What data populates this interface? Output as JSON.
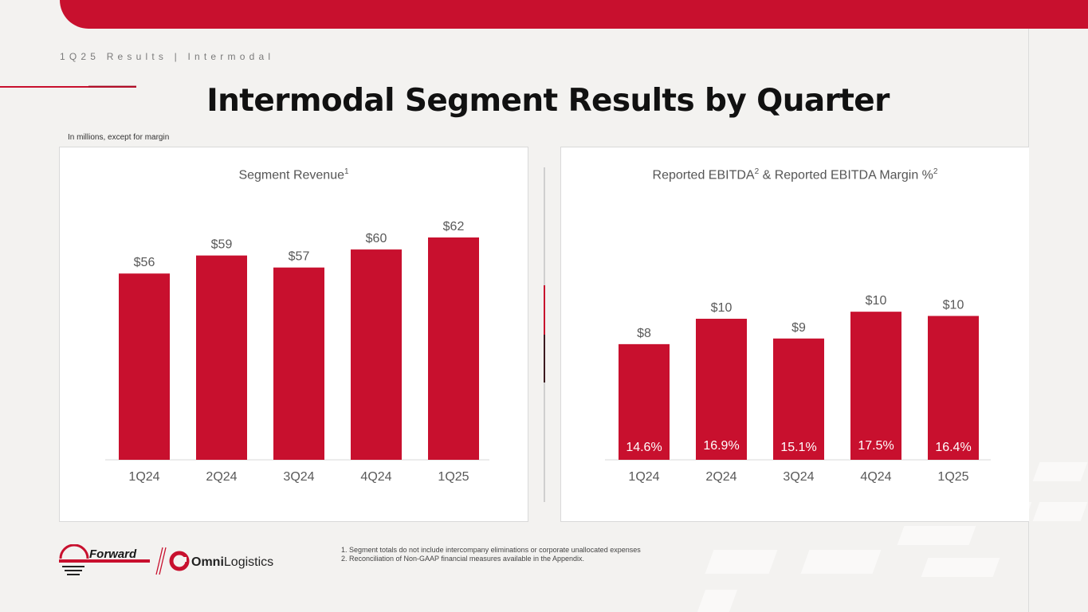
{
  "header": {
    "breadcrumb": "1Q25 Results | Intermodal",
    "title": "Intermodal Segment Results by Quarter",
    "units_note": "In millions, except for margin"
  },
  "colors": {
    "accent": "#c8102e",
    "text_gray": "#595959",
    "axis": "#d9d9d9"
  },
  "chart_data": [
    {
      "type": "bar",
      "title": "Segment Revenue",
      "title_sup": "1",
      "categories": [
        "1Q24",
        "2Q24",
        "3Q24",
        "4Q24",
        "1Q25"
      ],
      "values": [
        56,
        59,
        57,
        60,
        62
      ],
      "value_labels": [
        "$56",
        "$59",
        "$57",
        "$60",
        "$62"
      ],
      "ylim": [
        25,
        62
      ],
      "xlabel": "",
      "ylabel": ""
    },
    {
      "type": "bar",
      "title": "Reported EBITDA",
      "title_sup": "2",
      "title_mid": " & Reported EBITDA Margin %",
      "title_sup2": "2",
      "categories": [
        "1Q24",
        "2Q24",
        "3Q24",
        "4Q24",
        "1Q25"
      ],
      "values": [
        8.2,
        10.0,
        8.6,
        10.5,
        10.2
      ],
      "value_labels": [
        "$8",
        "$10",
        "$9",
        "$10",
        "$10"
      ],
      "margins": [
        "14.6%",
        "16.9%",
        "15.1%",
        "17.5%",
        "16.4%"
      ],
      "ylim": [
        0,
        12.6
      ],
      "xlabel": "",
      "ylabel": ""
    }
  ],
  "footnotes": [
    "1.  Segment totals do not include intercompany eliminations or corporate unallocated expenses",
    "2.  Reconciliation of Non-GAAP financial measures available in the Appendix."
  ],
  "logos": {
    "forward": "Forward",
    "omni_bold": "Omni",
    "omni_light": "Logistics"
  }
}
